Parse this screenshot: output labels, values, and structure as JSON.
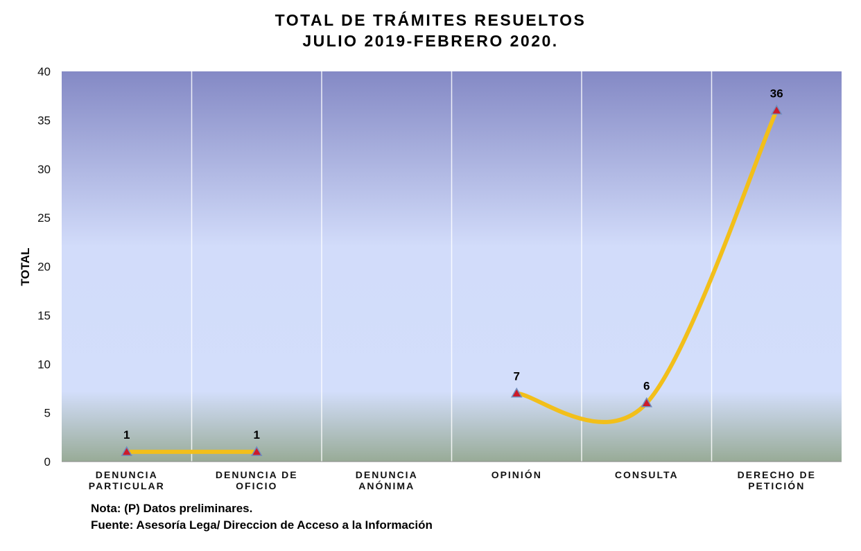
{
  "chart_data": {
    "type": "line",
    "title": "TOTAL DE TRÁMITES RESUELTOS",
    "subtitle": "JULIO 2019-FEBRERO 2020.",
    "ylabel": "TOTAL",
    "xlabel": "",
    "ylim": [
      0,
      40
    ],
    "yticks": [
      "0",
      "5",
      "10",
      "15",
      "20",
      "25",
      "30",
      "35",
      "40"
    ],
    "categories": [
      [
        "DENUNCIA",
        "PARTICULAR"
      ],
      [
        "DENUNCIA DE",
        "OFICIO"
      ],
      [
        "DENUNCIA",
        "ANÓNIMA"
      ],
      [
        "OPINIÓN"
      ],
      [
        "CONSULTA"
      ],
      [
        "DERECHO DE",
        "PETICIÓN"
      ]
    ],
    "values": [
      1,
      1,
      null,
      7,
      6,
      36
    ],
    "data_labels": [
      "1",
      "1",
      "",
      "7",
      "6",
      "36"
    ],
    "grid": "vertical",
    "line_color": "#f2bf1a",
    "marker_color": "#cc1b2b"
  },
  "notes": {
    "line1": "Nota: (P) Datos preliminares.",
    "line2": "Fuente: Asesoría Lega/ Direccion de Acceso a la Información"
  }
}
